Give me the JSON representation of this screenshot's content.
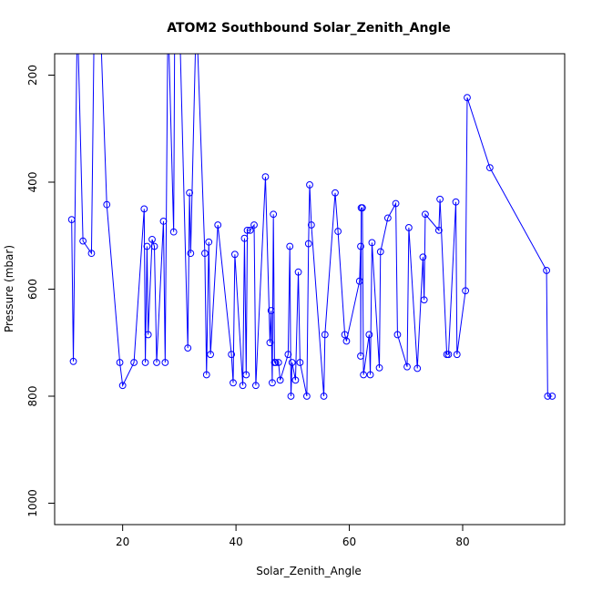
{
  "chart_data": {
    "type": "line",
    "title": "ATOM2 Southbound Solar_Zenith_Angle",
    "xlabel": "Solar_Zenith_Angle",
    "ylabel": "Pressure (mbar)",
    "xlim": [
      8,
      98
    ],
    "ylim": [
      1040,
      160
    ],
    "y_inverted": true,
    "x_ticks": [
      20,
      40,
      60,
      80
    ],
    "y_ticks": [
      200,
      400,
      600,
      800,
      1000
    ],
    "series": [
      {
        "color": "#0000ff",
        "marker": "open-circle",
        "points": [
          [
            11.0,
            470
          ],
          [
            11.3,
            735
          ],
          [
            12.0,
            80
          ],
          [
            13.0,
            510
          ],
          [
            14.5,
            533
          ],
          [
            15.0,
            80
          ],
          [
            16.0,
            80
          ],
          [
            17.2,
            442
          ],
          [
            19.5,
            737
          ],
          [
            20.0,
            780
          ],
          [
            22.0,
            737
          ],
          [
            23.8,
            450
          ],
          [
            24.0,
            737
          ],
          [
            24.3,
            520
          ],
          [
            24.5,
            685
          ],
          [
            25.2,
            507
          ],
          [
            25.6,
            520
          ],
          [
            26.0,
            737
          ],
          [
            27.2,
            473
          ],
          [
            27.5,
            737
          ],
          [
            28.0,
            80
          ],
          [
            29.0,
            493
          ],
          [
            29.2,
            80
          ],
          [
            30.0,
            80
          ],
          [
            31.5,
            710
          ],
          [
            31.8,
            420
          ],
          [
            32.0,
            533
          ],
          [
            33.0,
            80
          ],
          [
            34.5,
            533
          ],
          [
            34.8,
            760
          ],
          [
            35.2,
            512
          ],
          [
            35.5,
            722
          ],
          [
            36.8,
            480
          ],
          [
            39.2,
            722
          ],
          [
            39.5,
            775
          ],
          [
            39.8,
            535
          ],
          [
            41.2,
            780
          ],
          [
            41.5,
            505
          ],
          [
            41.8,
            760
          ],
          [
            42.0,
            490
          ],
          [
            42.5,
            490
          ],
          [
            43.2,
            480
          ],
          [
            43.5,
            780
          ],
          [
            45.2,
            390
          ],
          [
            46.0,
            700
          ],
          [
            46.2,
            640
          ],
          [
            46.4,
            775
          ],
          [
            46.6,
            460
          ],
          [
            46.8,
            737
          ],
          [
            47.0,
            737
          ],
          [
            47.5,
            737
          ],
          [
            47.8,
            770
          ],
          [
            49.2,
            722
          ],
          [
            49.5,
            520
          ],
          [
            49.7,
            800
          ],
          [
            49.9,
            737
          ],
          [
            50.5,
            770
          ],
          [
            51.0,
            568
          ],
          [
            51.3,
            737
          ],
          [
            52.5,
            800
          ],
          [
            52.8,
            515
          ],
          [
            53.0,
            405
          ],
          [
            53.3,
            480
          ],
          [
            55.5,
            800
          ],
          [
            55.7,
            685
          ],
          [
            57.5,
            420
          ],
          [
            58.0,
            492
          ],
          [
            59.2,
            685
          ],
          [
            59.5,
            697
          ],
          [
            61.8,
            585
          ],
          [
            62.0,
            520
          ],
          [
            62.0,
            725
          ],
          [
            62.1,
            448
          ],
          [
            62.3,
            448
          ],
          [
            62.5,
            760
          ],
          [
            63.5,
            685
          ],
          [
            63.7,
            760
          ],
          [
            64.0,
            513
          ],
          [
            65.3,
            747
          ],
          [
            65.5,
            530
          ],
          [
            66.8,
            467
          ],
          [
            68.2,
            440
          ],
          [
            68.5,
            685
          ],
          [
            70.2,
            745
          ],
          [
            70.5,
            485
          ],
          [
            72.0,
            748
          ],
          [
            73.0,
            540
          ],
          [
            73.2,
            620
          ],
          [
            73.4,
            460
          ],
          [
            75.8,
            490
          ],
          [
            76.0,
            432
          ],
          [
            77.2,
            722
          ],
          [
            77.5,
            722
          ],
          [
            78.8,
            437
          ],
          [
            79.0,
            722
          ],
          [
            80.5,
            603
          ],
          [
            80.8,
            242
          ],
          [
            84.8,
            373
          ],
          [
            94.8,
            565
          ],
          [
            95.0,
            800
          ],
          [
            95.8,
            800
          ]
        ]
      }
    ]
  }
}
